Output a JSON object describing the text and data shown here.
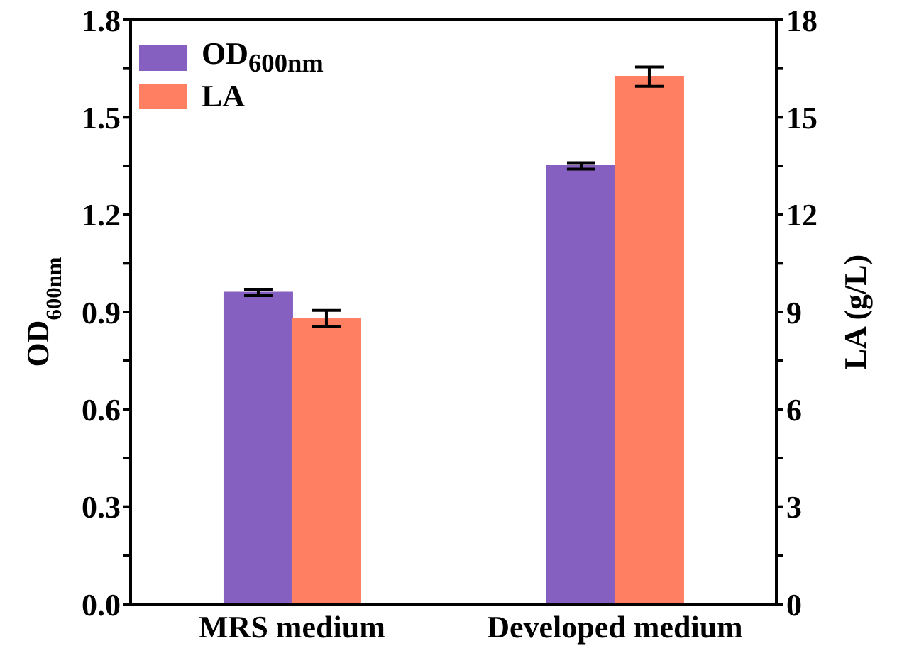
{
  "chart_data": {
    "type": "bar",
    "categories": [
      "MRS medium",
      "Developed medium"
    ],
    "series": [
      {
        "name": "OD$_{600nm}$",
        "color": "#8560c0",
        "values": [
          0.96,
          1.35
        ],
        "errors": [
          0.01,
          0.01
        ],
        "axis": "y"
      },
      {
        "name": "LA",
        "color": "#ff7f62",
        "values": [
          8.8,
          16.25
        ],
        "errors": [
          0.25,
          0.3
        ],
        "axis": "y2"
      }
    ],
    "ylabel": "OD$_{600nm}$",
    "y2label": "LA (g/L)",
    "ylim": [
      0,
      1.8
    ],
    "yticks": [
      {
        "value": 0,
        "label": "0.0"
      },
      {
        "value": 0.15,
        "label": null
      },
      0.3,
      {
        "value": 0.45,
        "label": null
      },
      0.6,
      {
        "value": 0.75,
        "label": null
      },
      0.9,
      {
        "value": 1.05,
        "label": null
      },
      1.2,
      {
        "value": 1.35,
        "label": null
      },
      1.5,
      {
        "value": 1.65,
        "label": null
      },
      1.8
    ],
    "y2lim": [
      0,
      18
    ],
    "y2ticks": [
      0,
      {
        "value": 1.5,
        "label": null
      },
      3,
      {
        "value": 4.5,
        "label": null
      },
      6,
      {
        "value": 7.5,
        "label": null
      },
      9,
      {
        "value": 10.5,
        "label": null
      },
      12,
      {
        "value": 13.5,
        "label": null
      },
      15,
      {
        "value": 16.5,
        "label": null
      },
      18
    ],
    "legend": "top left",
    "grid": false
  }
}
